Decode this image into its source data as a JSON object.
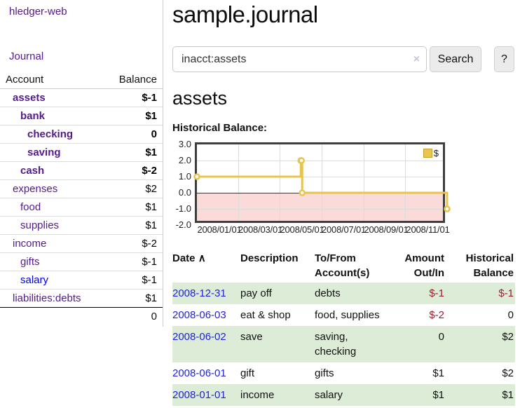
{
  "app": {
    "brand": "hledger-web"
  },
  "sidebar": {
    "journal_link": "Journal",
    "columns": {
      "account": "Account",
      "balance": "Balance"
    },
    "accounts": [
      {
        "name": "assets",
        "depth": 0,
        "bold": true,
        "balance": "$-1",
        "cls": "negstrong"
      },
      {
        "name": "bank",
        "depth": 1,
        "bold": true,
        "balance": "$1",
        "cls": ""
      },
      {
        "name": "checking",
        "depth": 2,
        "bold": true,
        "balance": "0",
        "cls": ""
      },
      {
        "name": "saving",
        "depth": 2,
        "bold": true,
        "balance": "$1",
        "cls": ""
      },
      {
        "name": "cash",
        "depth": 1,
        "bold": true,
        "balance": "$-2",
        "cls": "negstrong"
      },
      {
        "name": "expenses",
        "depth": 0,
        "bold": false,
        "balance": "$2",
        "cls": ""
      },
      {
        "name": "food",
        "depth": 1,
        "bold": false,
        "balance": "$1",
        "cls": ""
      },
      {
        "name": "supplies",
        "depth": 1,
        "bold": false,
        "balance": "$1",
        "cls": ""
      },
      {
        "name": "income",
        "depth": 0,
        "bold": false,
        "balance": "$-2",
        "cls": "negsoft"
      },
      {
        "name": "gifts",
        "depth": 1,
        "bold": false,
        "balance": "$-1",
        "cls": "negsoft"
      },
      {
        "name": "salary",
        "depth": 1,
        "bold": false,
        "balance": "$-1",
        "cls": "negsoft",
        "link": "blue"
      },
      {
        "name": "liabilities:debts",
        "depth": 0,
        "bold": false,
        "balance": "$1",
        "cls": ""
      }
    ],
    "total": "0"
  },
  "main": {
    "title": "sample.journal",
    "search": {
      "value": "inacct:assets",
      "clear_icon": "×",
      "search_button": "Search",
      "help_button": "?"
    },
    "account_heading": "assets",
    "chart_label": "Historical Balance:"
  },
  "chart_data": {
    "type": "line",
    "step": true,
    "title": "Historical Balance",
    "legend": [
      {
        "label": "$",
        "color": "#e8c44f"
      }
    ],
    "series": [
      {
        "name": "$",
        "points": [
          [
            "2008-01-01",
            1
          ],
          [
            "2008-06-01",
            2
          ],
          [
            "2008-06-02",
            2
          ],
          [
            "2008-06-03",
            0
          ],
          [
            "2008-12-31",
            -1
          ]
        ],
        "points_frac": [
          [
            0,
            1
          ],
          [
            0.4153,
            2
          ],
          [
            0.418,
            2
          ],
          [
            0.4208,
            0
          ],
          [
            1,
            -1
          ]
        ]
      }
    ],
    "y_ticks": [
      "3.0",
      "2.0",
      "1.0",
      "0.0",
      "-1.0",
      "-2.0"
    ],
    "ylim": [
      -2,
      3
    ],
    "x_ticks": [
      {
        "label": "2008/01/01",
        "f": 0.0
      },
      {
        "label": "2008/03/01",
        "f": 0.1639
      },
      {
        "label": "2008/05/01",
        "f": 0.3306
      },
      {
        "label": "2008/07/01",
        "f": 0.4973
      },
      {
        "label": "2008/09/01",
        "f": 0.6667
      },
      {
        "label": "2008/11/01",
        "f": 0.8333
      }
    ],
    "grid": true,
    "legend_position": "top-right",
    "colors": {
      "line": "#e8c44f",
      "negative_area": "#fbdada",
      "zero_line": "#8b1313",
      "border": "#3e3e3e"
    }
  },
  "register": {
    "columns": {
      "date": "Date",
      "description": "Description",
      "accounts": "To/From Account(s)",
      "amount": "Amount Out/In",
      "balance": "Historical Balance"
    },
    "sort_icon": "∧",
    "rows": [
      {
        "date": "2008-12-31",
        "description": "pay off",
        "accounts": "debts",
        "amount": "$-1",
        "amount_neg": true,
        "balance": "$-1",
        "balance_neg": true,
        "green": true
      },
      {
        "date": "2008-06-03",
        "description": "eat & shop",
        "accounts": "food, supplies",
        "amount": "$-2",
        "amount_neg": true,
        "balance": "0",
        "balance_neg": false,
        "green": false
      },
      {
        "date": "2008-06-02",
        "description": "save",
        "accounts": "saving, checking",
        "amount": "0",
        "amount_neg": false,
        "balance": "$2",
        "balance_neg": false,
        "green": true
      },
      {
        "date": "2008-06-01",
        "description": "gift",
        "accounts": "gifts",
        "amount": "$1",
        "amount_neg": false,
        "balance": "$2",
        "balance_neg": false,
        "green": false
      },
      {
        "date": "2008-01-01",
        "description": "income",
        "accounts": "salary",
        "amount": "$1",
        "amount_neg": false,
        "balance": "$1",
        "balance_neg": false,
        "green": true
      }
    ]
  },
  "colors": {
    "link_purple": "#551a8b",
    "link_blue": "#0000ee",
    "date_blue": "#2222dd",
    "negative_strong": "#9c1b2e",
    "negative_soft": "#bb7580",
    "row_green": "#dcecd7"
  }
}
